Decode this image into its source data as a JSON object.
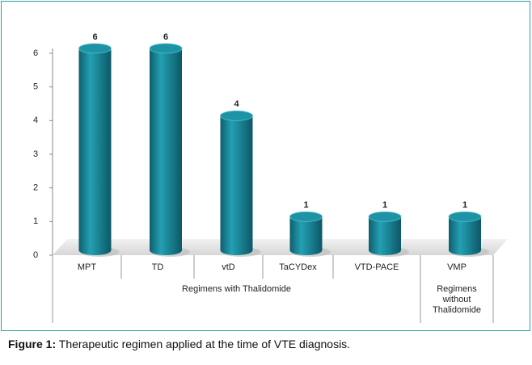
{
  "chart_data": {
    "type": "bar",
    "categories": [
      "MPT",
      "TD",
      "vtD",
      "TaCYDex",
      "VTD-PACE",
      "VMP"
    ],
    "values": [
      6,
      6,
      4,
      1,
      1,
      1
    ],
    "color": "#1b8a9b",
    "group_labels": [
      "Regimens with Thalidomide",
      "Regimens without Thalidomide"
    ],
    "ylim": [
      0,
      6
    ],
    "yticks": [
      0,
      1,
      2,
      3,
      4,
      5,
      6
    ],
    "grid": false,
    "caption": {
      "label": "Figure 1:",
      "text": "Therapeutic regimen applied at the time of VTE diagnosis."
    }
  }
}
